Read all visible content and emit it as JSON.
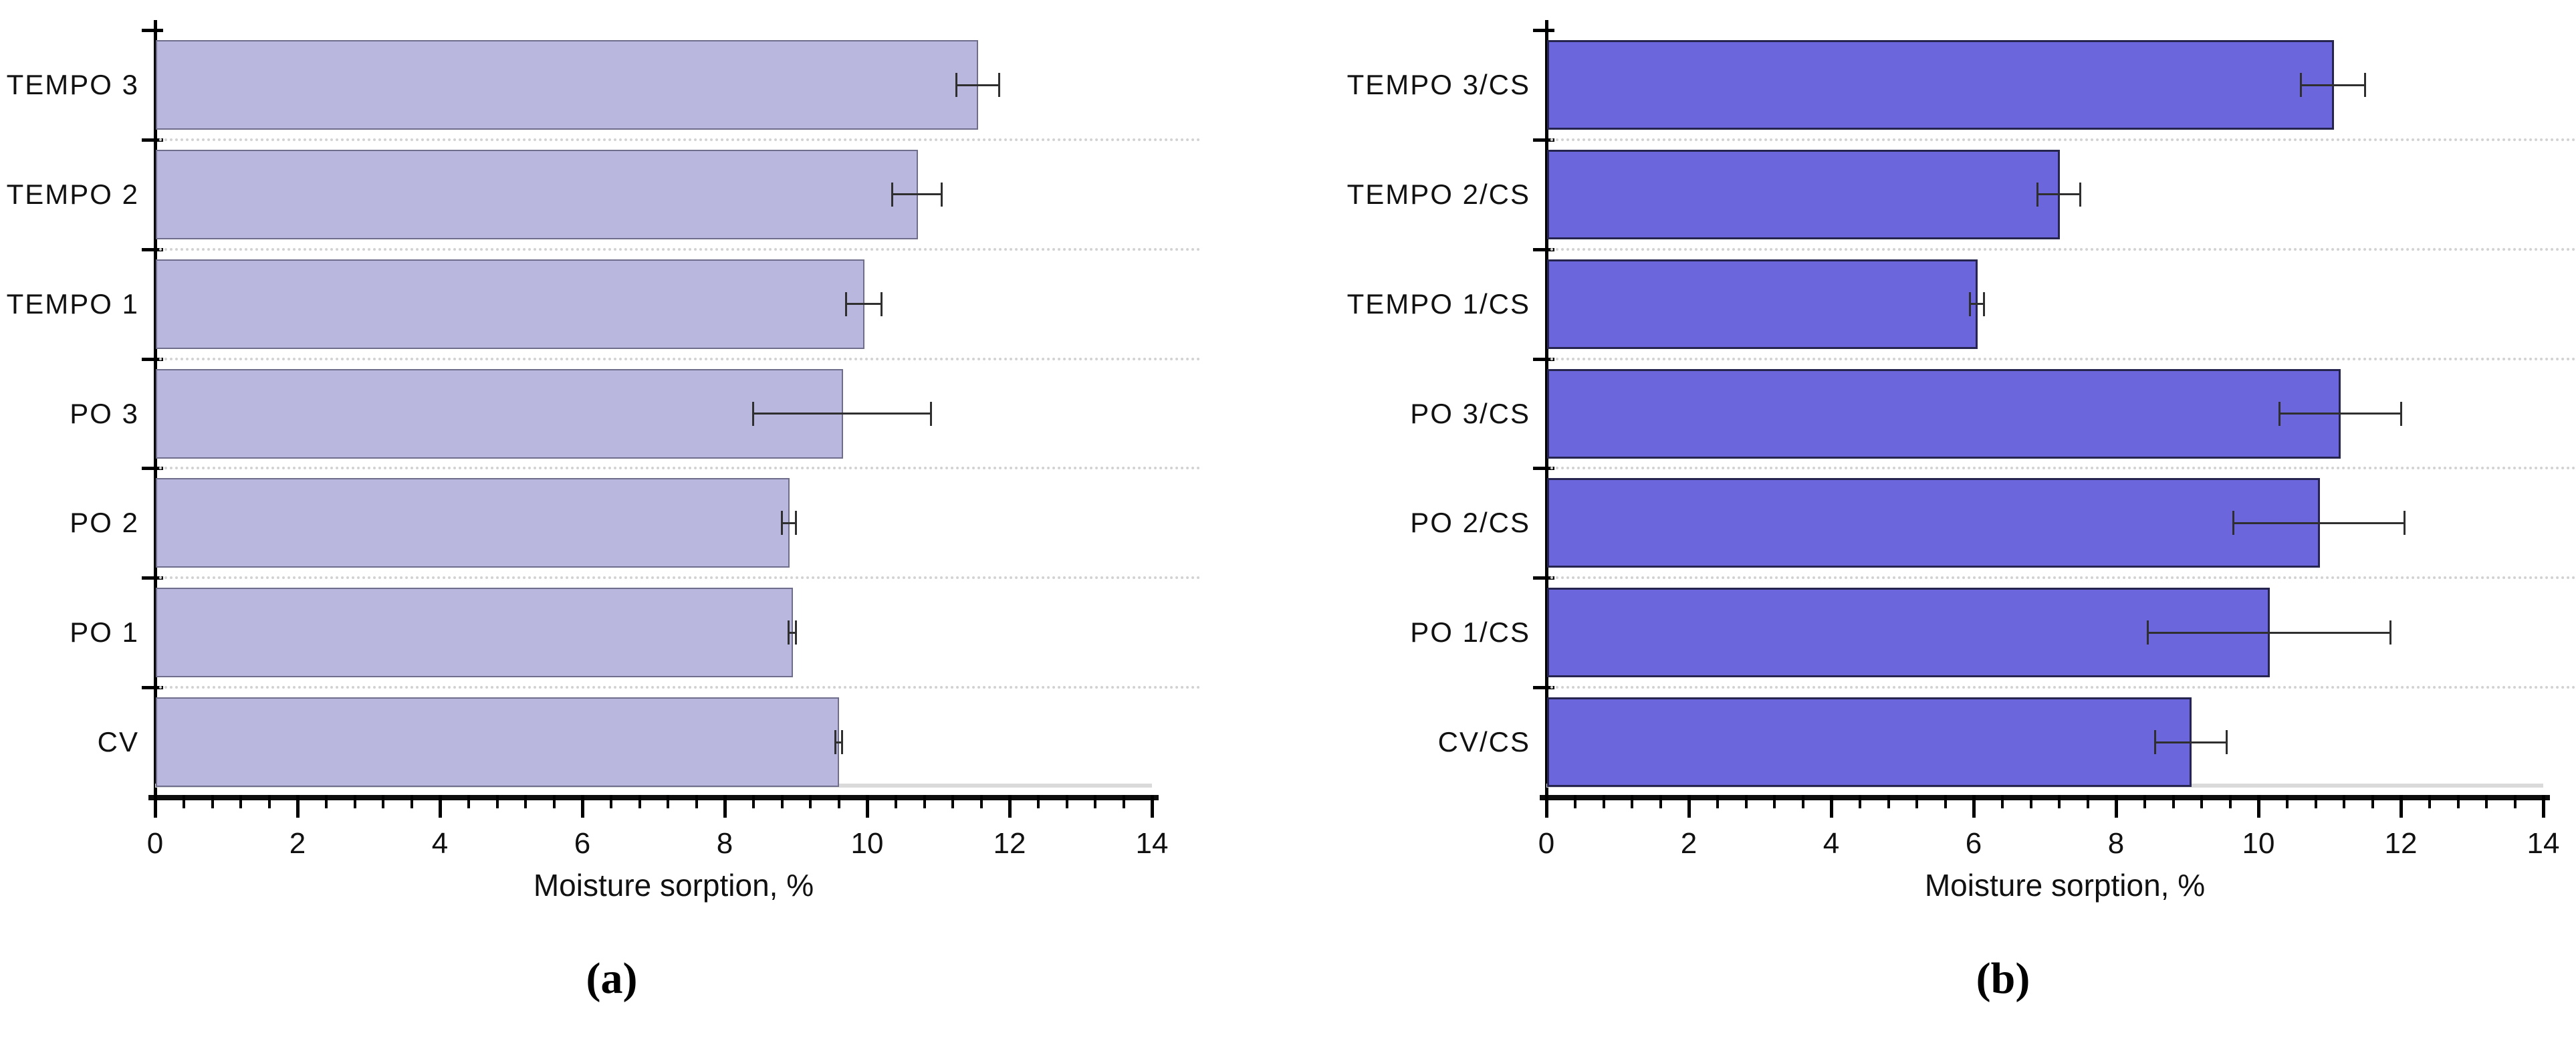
{
  "figure": {
    "background": "#ffffff",
    "description": "Two horizontal bar charts of moisture sorption with standard-deviation error bars",
    "captions": {
      "a": "(a)",
      "b": "(b)"
    }
  },
  "chart_data": [
    {
      "id": "a",
      "type": "bar",
      "orientation": "horizontal",
      "caption": "(a)",
      "title": "",
      "xlabel": "Moisture sorption, %",
      "ylabel": "",
      "categories": [
        "TEMPO 3",
        "TEMPO 2",
        "TEMPO 1",
        "PO 3",
        "PO 2",
        "PO 1",
        "CV"
      ],
      "values": [
        11.55,
        10.7,
        9.95,
        9.65,
        8.9,
        8.95,
        9.6
      ],
      "errors": [
        0.3,
        0.35,
        0.25,
        1.25,
        0.1,
        0.05,
        0.05
      ],
      "xlim": [
        0,
        14
      ],
      "xticks": [
        0,
        2,
        4,
        6,
        8,
        10,
        12,
        14
      ],
      "minor_tick_step": 0.4,
      "grid": "dotted horizontal lines at category boundaries",
      "legend_position": "none",
      "bar_fill": "#b9b7de",
      "bar_border": "#6f6d8c",
      "error_color": "#2f2f2f",
      "grid_color": "#d2d2d2"
    },
    {
      "id": "b",
      "type": "bar",
      "orientation": "horizontal",
      "caption": "(b)",
      "title": "",
      "xlabel": "Moisture sorption, %",
      "ylabel": "",
      "categories": [
        "TEMPO 3/CS",
        "TEMPO 2/CS",
        "TEMPO 1/CS",
        "PO 3/CS",
        "PO 2/CS",
        "PO 1/CS",
        "CV/CS"
      ],
      "values": [
        11.05,
        7.2,
        6.05,
        11.15,
        10.85,
        10.15,
        9.05
      ],
      "errors": [
        0.45,
        0.3,
        0.1,
        0.85,
        1.2,
        1.7,
        0.5
      ],
      "xlim": [
        0,
        14
      ],
      "xticks": [
        0,
        2,
        4,
        6,
        8,
        10,
        12,
        14
      ],
      "minor_tick_step": 0.4,
      "grid": "dotted horizontal lines at category boundaries",
      "legend_position": "none",
      "bar_fill": "#6b66dc",
      "bar_border": "#262550",
      "error_color": "#2f2f2f",
      "grid_color": "#d2d2d2"
    }
  ]
}
